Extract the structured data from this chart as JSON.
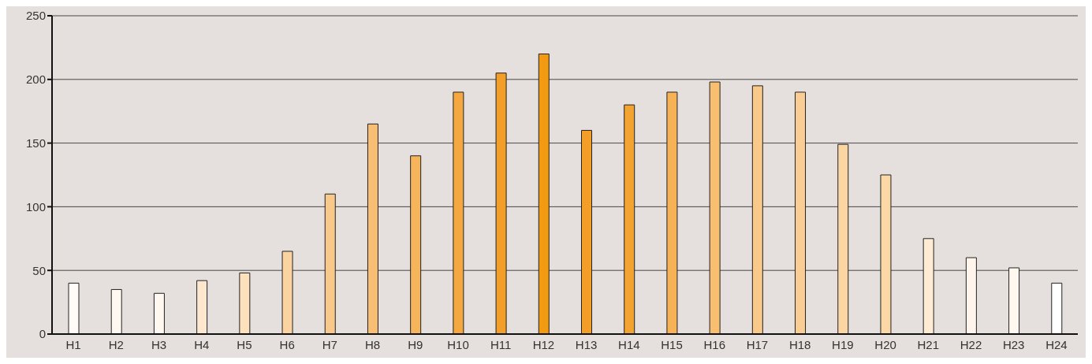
{
  "chart_data": {
    "type": "bar",
    "categories": [
      "H1",
      "H2",
      "H3",
      "H4",
      "H5",
      "H6",
      "H7",
      "H8",
      "H9",
      "H10",
      "H11",
      "H12",
      "H13",
      "H14",
      "H15",
      "H16",
      "H17",
      "H18",
      "H19",
      "H20",
      "H21",
      "H22",
      "H23",
      "H24"
    ],
    "values": [
      40,
      35,
      32,
      42,
      48,
      65,
      110,
      165,
      140,
      190,
      205,
      220,
      160,
      180,
      190,
      198,
      195,
      190,
      149,
      125,
      75,
      60,
      52,
      40
    ],
    "colors": [
      "#fffcf8",
      "#fff8f0",
      "#fff8f0",
      "#fde8cf",
      "#fde0bc",
      "#fbd3a0",
      "#f9c98c",
      "#f8be74",
      "#f6b55b",
      "#f4a83f",
      "#f29e28",
      "#f29a12",
      "#f29e28",
      "#f3a332",
      "#f6b254",
      "#f8bf70",
      "#f9c98a",
      "#f9cd94",
      "#fbd6a2",
      "#fcd8a6",
      "#fdebd3",
      "#fff5ea",
      "#fff8f0",
      "#ffffff"
    ],
    "ylim": [
      0,
      250
    ],
    "yticks": [
      0,
      50,
      100,
      150,
      200,
      250
    ],
    "grid": "y"
  }
}
